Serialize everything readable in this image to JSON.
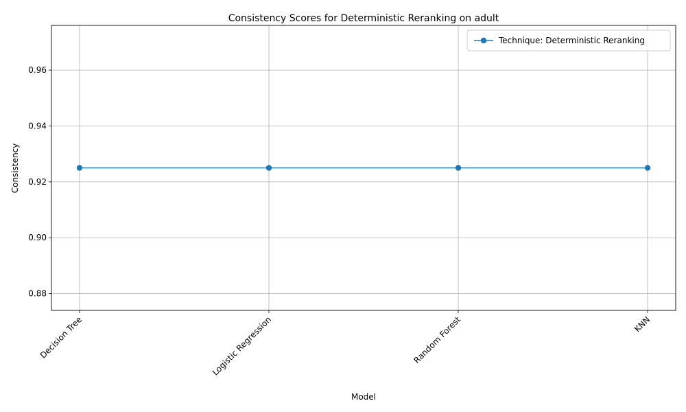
{
  "chart_data": {
    "type": "line",
    "title": "Consistency Scores for Deterministic Reranking on adult",
    "xlabel": "Model",
    "ylabel": "Consistency",
    "categories": [
      "Decision Tree",
      "Logistic Regression",
      "Random Forest",
      "KNN"
    ],
    "series": [
      {
        "name": "Technique: Deterministic Reranking",
        "values": [
          0.925,
          0.925,
          0.925,
          0.925
        ],
        "color": "#1f77b4",
        "marker": "circle"
      }
    ],
    "ylim": [
      0.874,
      0.976
    ],
    "yticks": [
      "0.88",
      "0.90",
      "0.92",
      "0.94",
      "0.96"
    ],
    "grid": true,
    "legend_position": "top-right"
  }
}
